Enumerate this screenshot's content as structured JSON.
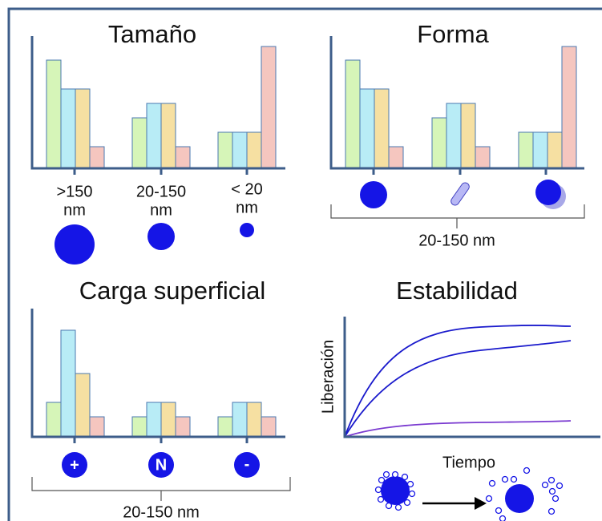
{
  "panels": [
    {
      "title": "Tamaño",
      "labels": [
        ">150",
        "nm",
        "20-150",
        "nm",
        "< 20",
        "nm"
      ]
    },
    {
      "title": "Forma",
      "range_label": "20-150 nm"
    },
    {
      "title": "Carga superficial",
      "symbols": [
        "+",
        "N",
        "-"
      ],
      "range_label": "20-150 nm"
    },
    {
      "title": "Estabilidad",
      "y_label": "Liberación",
      "x_label": "Tiempo"
    }
  ]
}
